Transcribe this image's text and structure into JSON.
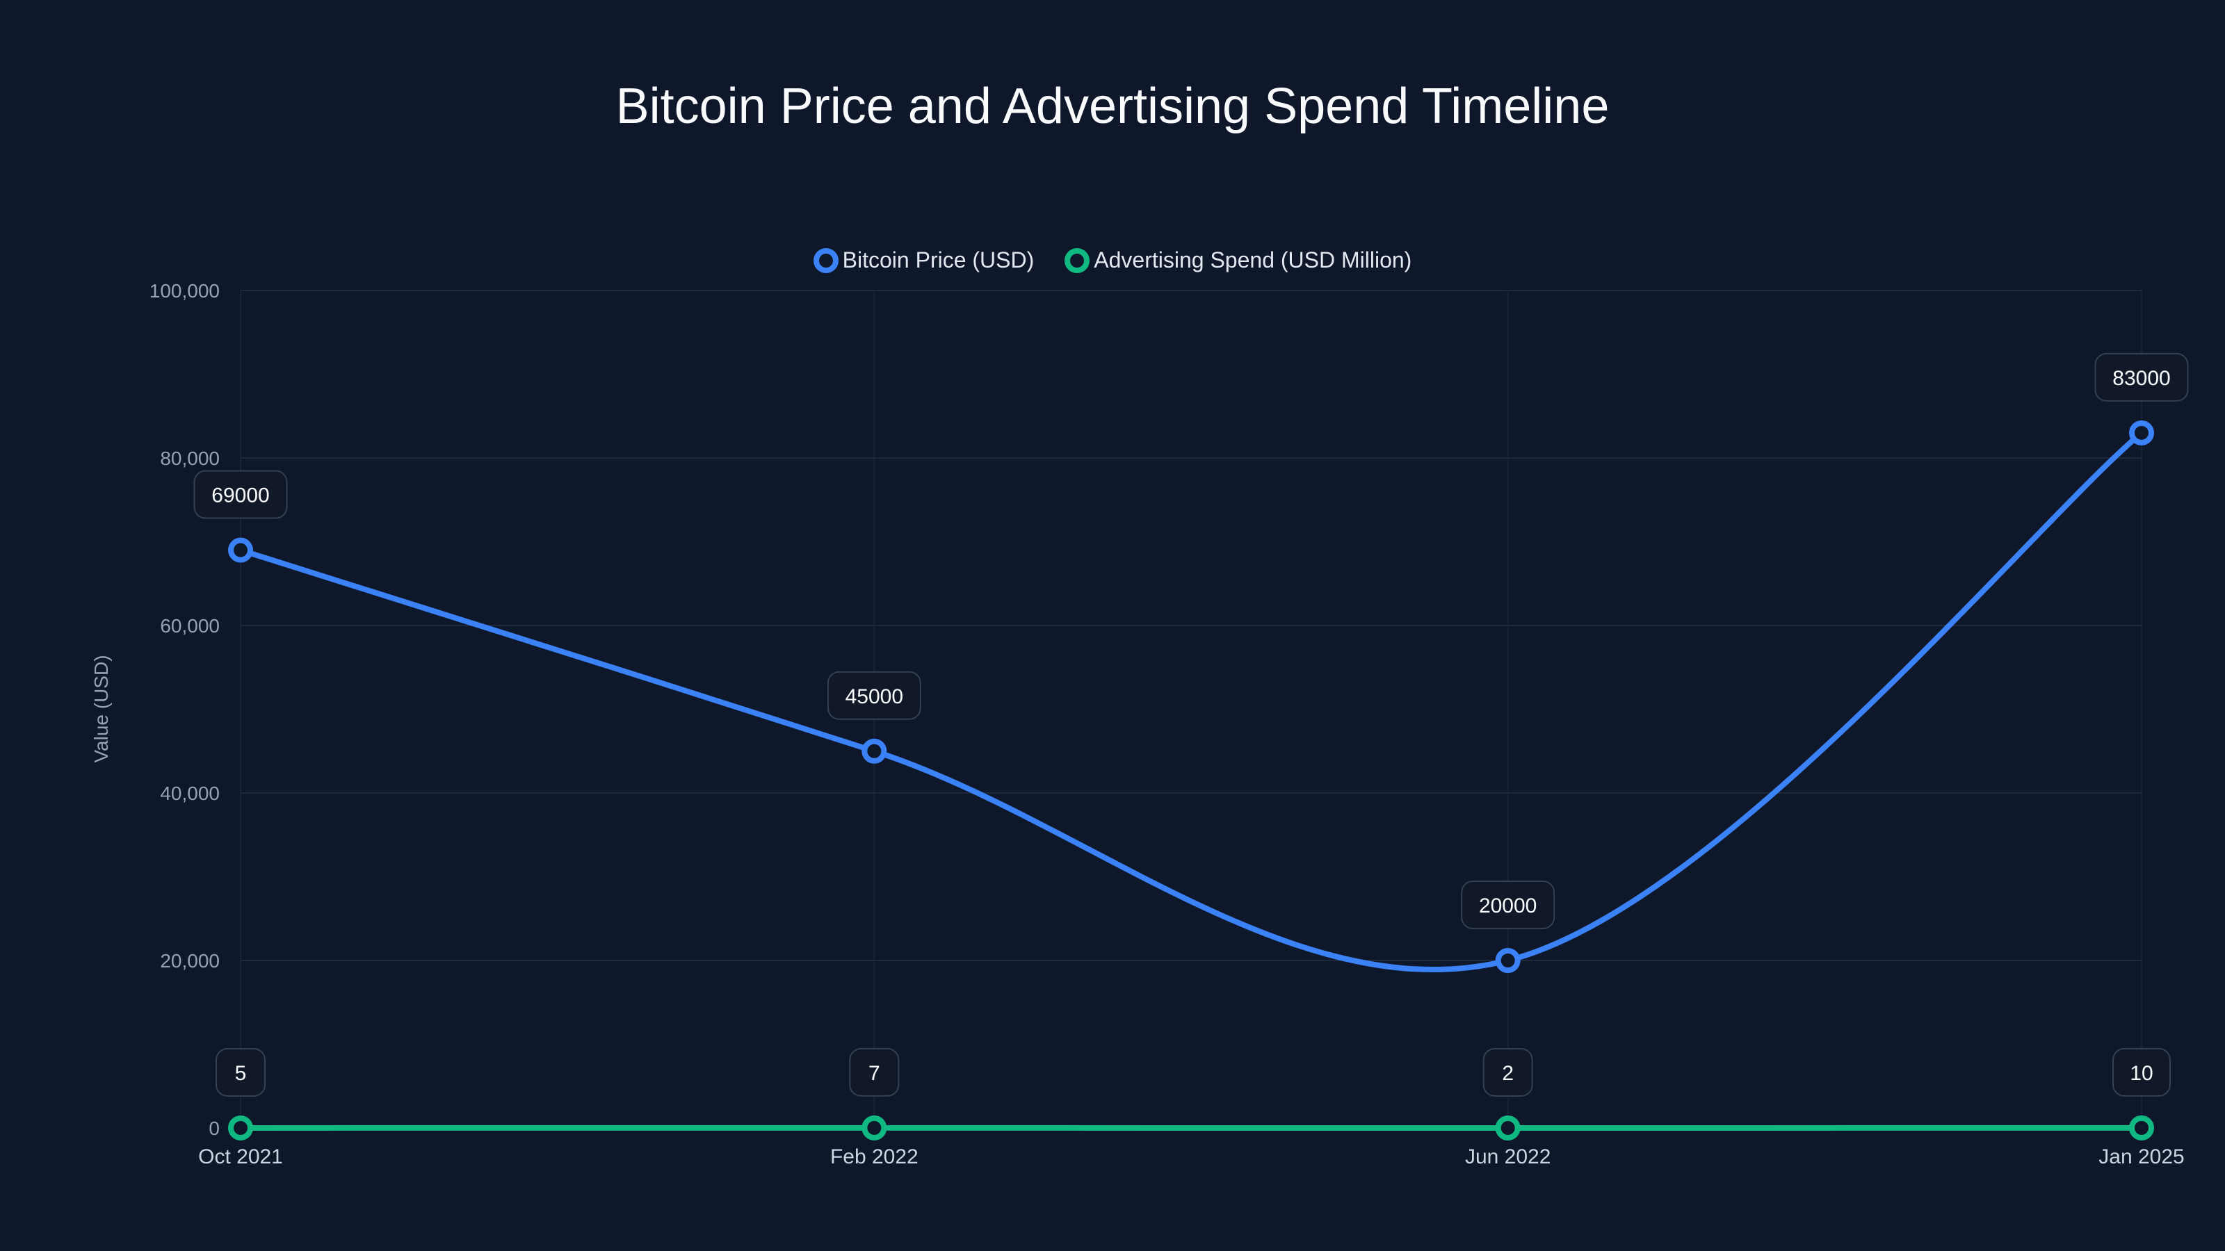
{
  "title": "Bitcoin Price and Advertising Spend Timeline",
  "legend": [
    {
      "label": "Bitcoin Price (USD)",
      "color": "#3b82f6",
      "icon": "circle-outline-icon"
    },
    {
      "label": "Advertising Spend (USD Million)",
      "color": "#10b981",
      "icon": "circle-outline-icon"
    }
  ],
  "axes": {
    "ylabel": "Value (USD)",
    "yticks": [
      "0",
      "20,000",
      "40,000",
      "60,000",
      "80,000",
      "100,000"
    ],
    "xticks": [
      "Oct 2021",
      "Feb 2022",
      "Jun 2022",
      "Jan 2025"
    ]
  },
  "colors": {
    "background": "#0f172a",
    "grid": "#1e293b",
    "bitcoin": "#3b82f6",
    "advertising": "#10b981",
    "label_border": "#334155"
  },
  "chart_data": {
    "type": "line",
    "title": "Bitcoin Price and Advertising Spend Timeline",
    "xlabel": "",
    "ylabel": "Value (USD)",
    "categories": [
      "Oct 2021",
      "Feb 2022",
      "Jun 2022",
      "Jan 2025"
    ],
    "series": [
      {
        "name": "Bitcoin Price (USD)",
        "values": [
          69000,
          45000,
          20000,
          83000
        ],
        "color": "#3b82f6"
      },
      {
        "name": "Advertising Spend (USD Million)",
        "values": [
          5,
          7,
          2,
          10
        ],
        "color": "#10b981"
      }
    ],
    "ylim": [
      0,
      100000
    ],
    "yticks": [
      0,
      20000,
      40000,
      60000,
      80000,
      100000
    ],
    "grid": true,
    "legend_position": "top",
    "smooth": true,
    "data_labels": true
  }
}
